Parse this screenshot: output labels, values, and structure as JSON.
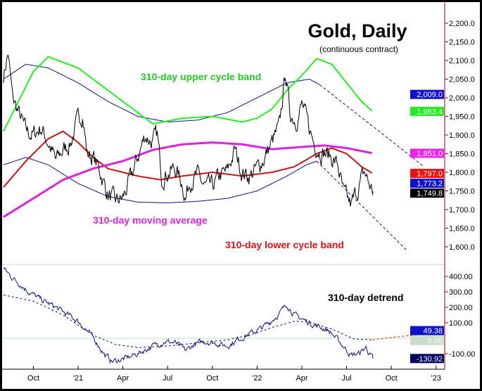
{
  "chart_data": {
    "type": "line",
    "title": "Gold, Daily",
    "subtitle": "(continuous contract)",
    "x_unit": "months since Aug 2020",
    "x_ticks": [
      {
        "m": 2,
        "label": "Oct"
      },
      {
        "m": 5,
        "label": "'21"
      },
      {
        "m": 8,
        "label": "Apr"
      },
      {
        "m": 11,
        "label": "Jul"
      },
      {
        "m": 14,
        "label": "Oct"
      },
      {
        "m": 17,
        "label": "'22"
      },
      {
        "m": 20,
        "label": "Apr"
      },
      {
        "m": 23,
        "label": "Jul"
      },
      {
        "m": 26,
        "label": "Oct"
      },
      {
        "m": 29,
        "label": "'23"
      }
    ],
    "upper_panel": {
      "ylim": [
        1560,
        2250
      ],
      "y_ticks": [
        1600,
        1650,
        1700,
        1750,
        1800,
        1850,
        1900,
        1950,
        2000,
        2050,
        2100,
        2150,
        2200
      ],
      "y_tick_labels": [
        "1,600.0",
        "1,650.0",
        "1,700.0",
        "1,750.0",
        "1,800.0",
        "1,850.0",
        "1,900.0",
        "1,950.0",
        "2,000.0",
        "2,050.0",
        "2,100.0",
        "2,150.0",
        "2,200.0"
      ],
      "price": [
        [
          0,
          2060
        ],
        [
          0.3,
          2120
        ],
        [
          0.6,
          2000
        ],
        [
          1,
          1960
        ],
        [
          1.5,
          1910
        ],
        [
          2,
          1900
        ],
        [
          2.5,
          1920
        ],
        [
          3,
          1880
        ],
        [
          3.5,
          1830
        ],
        [
          4,
          1860
        ],
        [
          4.5,
          1880
        ],
        [
          5,
          1940
        ],
        [
          5.3,
          1960
        ],
        [
          5.6,
          1850
        ],
        [
          6,
          1840
        ],
        [
          6.5,
          1800
        ],
        [
          7,
          1740
        ],
        [
          7.5,
          1720
        ],
        [
          8,
          1730
        ],
        [
          8.5,
          1780
        ],
        [
          9,
          1840
        ],
        [
          9.5,
          1900
        ],
        [
          10,
          1880
        ],
        [
          10.3,
          1900
        ],
        [
          10.6,
          1790
        ],
        [
          11,
          1800
        ],
        [
          11.5,
          1810
        ],
        [
          12,
          1770
        ],
        [
          12.2,
          1730
        ],
        [
          12.5,
          1780
        ],
        [
          13,
          1790
        ],
        [
          13.5,
          1760
        ],
        [
          14,
          1760
        ],
        [
          14.5,
          1790
        ],
        [
          15,
          1800
        ],
        [
          15.5,
          1860
        ],
        [
          16,
          1800
        ],
        [
          16.5,
          1790
        ],
        [
          17,
          1810
        ],
        [
          17.5,
          1840
        ],
        [
          18,
          1880
        ],
        [
          18.5,
          1920
        ],
        [
          18.9,
          2070
        ],
        [
          19.2,
          1960
        ],
        [
          19.6,
          1940
        ],
        [
          20,
          1980
        ],
        [
          20.4,
          1930
        ],
        [
          20.8,
          1880
        ],
        [
          21.2,
          1860
        ],
        [
          21.6,
          1850
        ],
        [
          22,
          1840
        ],
        [
          22.4,
          1820
        ],
        [
          22.8,
          1740
        ],
        [
          23.3,
          1710
        ],
        [
          23.8,
          1760
        ],
        [
          24.2,
          1800
        ],
        [
          24.6,
          1760
        ],
        [
          24.75,
          1749.8
        ]
      ],
      "moving_average_310": [
        [
          0,
          1680
        ],
        [
          2,
          1730
        ],
        [
          4,
          1780
        ],
        [
          6,
          1810
        ],
        [
          8,
          1830
        ],
        [
          10,
          1860
        ],
        [
          12,
          1875
        ],
        [
          14,
          1880
        ],
        [
          16,
          1875
        ],
        [
          18,
          1862
        ],
        [
          20,
          1868
        ],
        [
          21.5,
          1872
        ],
        [
          23,
          1865
        ],
        [
          24.75,
          1851
        ]
      ],
      "upper_cycle_band": [
        [
          0,
          1910
        ],
        [
          1,
          1990
        ],
        [
          2,
          2070
        ],
        [
          3,
          2110
        ],
        [
          5,
          2080
        ],
        [
          7,
          2020
        ],
        [
          9,
          1960
        ],
        [
          10,
          1930
        ],
        [
          12,
          1945
        ],
        [
          14,
          1950
        ],
        [
          16,
          1935
        ],
        [
          17,
          1945
        ],
        [
          18,
          1970
        ],
        [
          19,
          2020
        ],
        [
          20,
          2060
        ],
        [
          21,
          2105
        ],
        [
          22,
          2090
        ],
        [
          23,
          2040
        ],
        [
          24,
          1990
        ],
        [
          24.75,
          1963.4
        ]
      ],
      "lower_cycle_band": [
        [
          0,
          1760
        ],
        [
          1.5,
          1830
        ],
        [
          3,
          1890
        ],
        [
          4,
          1910
        ],
        [
          5,
          1880
        ],
        [
          6,
          1840
        ],
        [
          7,
          1810
        ],
        [
          9,
          1790
        ],
        [
          10.5,
          1780
        ],
        [
          12,
          1790
        ],
        [
          14,
          1800
        ],
        [
          16,
          1790
        ],
        [
          18,
          1800
        ],
        [
          19.5,
          1815
        ],
        [
          21,
          1850
        ],
        [
          22,
          1865
        ],
        [
          23,
          1850
        ],
        [
          24,
          1815
        ],
        [
          24.75,
          1797
        ]
      ],
      "upper_envelope": [
        [
          0,
          2050
        ],
        [
          1.5,
          2090
        ],
        [
          3,
          2080
        ],
        [
          5,
          2040
        ],
        [
          7,
          1990
        ],
        [
          9,
          1950
        ],
        [
          11,
          1935
        ],
        [
          13,
          1940
        ],
        [
          15,
          1960
        ],
        [
          17,
          2000
        ],
        [
          19,
          2040
        ],
        [
          20.5,
          2050
        ],
        [
          21.2,
          2035
        ]
      ],
      "upper_envelope_projection": [
        [
          21.2,
          2035
        ],
        [
          28.2,
          1815
        ]
      ],
      "lower_envelope": [
        [
          0,
          1820
        ],
        [
          1.5,
          1840
        ],
        [
          3,
          1820
        ],
        [
          5,
          1770
        ],
        [
          7,
          1735
        ],
        [
          9,
          1720
        ],
        [
          11,
          1718
        ],
        [
          13,
          1722
        ],
        [
          15,
          1730
        ],
        [
          17,
          1750
        ],
        [
          19,
          1790
        ],
        [
          20.3,
          1820
        ],
        [
          21,
          1830
        ]
      ],
      "lower_envelope_projection": [
        [
          21,
          1830
        ],
        [
          27.3,
          1580
        ]
      ],
      "value_labels": [
        {
          "text": "2,009.0",
          "value": 2009.0,
          "bg": "#1010d0",
          "fg": "#ffffff"
        },
        {
          "text": "1,963.4",
          "value": 1963.4,
          "bg": "#22ee22",
          "fg": "#ffffff"
        },
        {
          "text": "1,851.0",
          "value": 1851.0,
          "bg": "#ee22ee",
          "fg": "#ffffff"
        },
        {
          "text": "1,797.0",
          "value": 1797.0,
          "bg": "#ee1111",
          "fg": "#ffffff"
        },
        {
          "text": "1,773.2",
          "value": 1773.2,
          "bg": "#1010d0",
          "fg": "#ffffff"
        },
        {
          "text": "1,749.8",
          "value": 1749.8,
          "bg": "#000000",
          "fg": "#ffffff"
        }
      ],
      "annotations": {
        "upper": "310-day upper cycle band",
        "ma": "310-day moving average",
        "lower": "310-day lower cycle band"
      }
    },
    "lower_panel": {
      "title": "310-day detrend",
      "ylim": [
        -180,
        480
      ],
      "y_ticks": [
        -100,
        100,
        200,
        300,
        400
      ],
      "y_tick_labels": [
        "-100.00",
        "100.00",
        "200.00",
        "300.00",
        "400.00"
      ],
      "detrend": [
        [
          0,
          450
        ],
        [
          0.5,
          400
        ],
        [
          1,
          360
        ],
        [
          1.7,
          300
        ],
        [
          2.5,
          250
        ],
        [
          3.5,
          200
        ],
        [
          4.5,
          140
        ],
        [
          5,
          110
        ],
        [
          5.5,
          60
        ],
        [
          6.2,
          -20
        ],
        [
          6.8,
          -110
        ],
        [
          7.3,
          -150
        ],
        [
          7.8,
          -140
        ],
        [
          8.5,
          -120
        ],
        [
          9.2,
          -90
        ],
        [
          10,
          -50
        ],
        [
          10.8,
          -20
        ],
        [
          11.5,
          -30
        ],
        [
          12.2,
          -80
        ],
        [
          12.8,
          -40
        ],
        [
          13.5,
          -20
        ],
        [
          14.2,
          -30
        ],
        [
          15,
          -50
        ],
        [
          15.7,
          -10
        ],
        [
          16.5,
          30
        ],
        [
          17.2,
          60
        ],
        [
          17.8,
          100
        ],
        [
          18.5,
          160
        ],
        [
          19,
          220
        ],
        [
          19.5,
          150
        ],
        [
          20.3,
          110
        ],
        [
          21,
          80
        ],
        [
          21.8,
          50
        ],
        [
          22.5,
          -20
        ],
        [
          23.3,
          -110
        ],
        [
          23.8,
          -100
        ],
        [
          24.3,
          -60
        ],
        [
          24.75,
          -130.92
        ]
      ],
      "cycle_projection": [
        [
          0,
          280
        ],
        [
          2,
          240
        ],
        [
          4,
          150
        ],
        [
          6,
          20
        ],
        [
          7.5,
          -40
        ],
        [
          9,
          -60
        ],
        [
          11,
          -50
        ],
        [
          13,
          -30
        ],
        [
          15,
          -10
        ],
        [
          16.5,
          20
        ],
        [
          18,
          70
        ],
        [
          19.5,
          110
        ],
        [
          20.5,
          105
        ],
        [
          22,
          60
        ],
        [
          23.5,
          -5
        ],
        [
          24.75,
          -10
        ],
        [
          26,
          5
        ],
        [
          28,
          25
        ],
        [
          29.6,
          49.38
        ]
      ],
      "value_labels": [
        {
          "text": "49.38",
          "value": 49.38,
          "bg": "#1010d0",
          "fg": "#ffffff"
        },
        {
          "text": "0.00",
          "value": 0,
          "bg": "#c8dcc8",
          "fg": "#ffffff"
        },
        {
          "text": "-130.92",
          "value": -130.92,
          "bg": "#000060",
          "fg": "#ffffff"
        }
      ]
    }
  }
}
